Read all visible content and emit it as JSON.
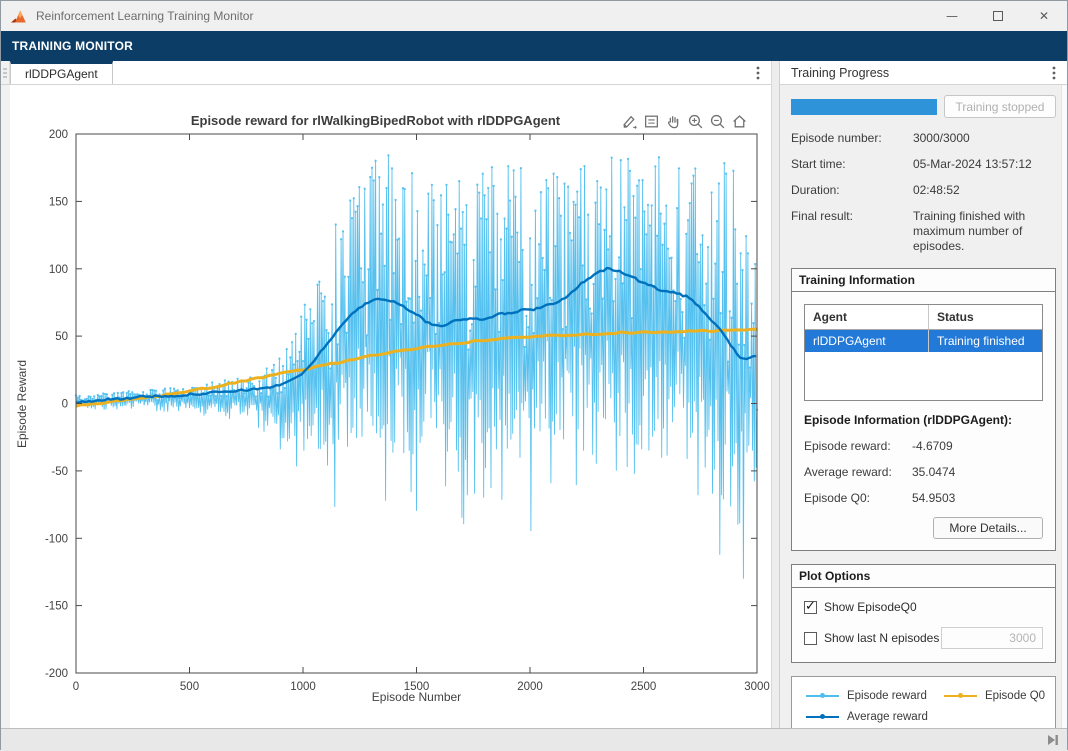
{
  "window": {
    "title": "Reinforcement Learning Training Monitor"
  },
  "ribbon": {
    "tab": "TRAINING MONITOR"
  },
  "document_tab": {
    "label": "rlDDPGAgent"
  },
  "right_panel": {
    "header": "Training Progress",
    "progress": {
      "percent": 100,
      "status_button": "Training stopped"
    },
    "summary": [
      {
        "label": "Episode number:",
        "value": "3000/3000"
      },
      {
        "label": "Start time:",
        "value": "05-Mar-2024 13:57:12"
      },
      {
        "label": "Duration:",
        "value": "02:48:52"
      },
      {
        "label": "Final result:",
        "value": "Training finished with maximum number of episodes."
      }
    ],
    "training_information": {
      "title": "Training Information",
      "table_headers": [
        "Agent",
        "Status"
      ],
      "table_rows": [
        {
          "agent": "rlDDPGAgent",
          "status": "Training finished",
          "selected": true
        }
      ],
      "episode_info_title": "Episode Information (rlDDPGAgent):",
      "episode_info": [
        {
          "label": "Episode reward:",
          "value": "-4.6709"
        },
        {
          "label": "Average reward:",
          "value": "35.0474"
        },
        {
          "label": "Episode Q0:",
          "value": "54.9503"
        }
      ],
      "more_details_button": "More Details..."
    },
    "plot_options": {
      "title": "Plot Options",
      "show_episode_q0": {
        "label": "Show EpisodeQ0",
        "checked": true
      },
      "show_last_n": {
        "label": "Show last N episodes",
        "checked": false,
        "value": "3000"
      }
    }
  },
  "chart_data": {
    "type": "line",
    "title": "Episode reward for rlWalkingBipedRobot with rlDDPGAgent",
    "xlabel": "Episode Number",
    "ylabel": "Episode Reward",
    "xlim": [
      0,
      3000
    ],
    "ylim": [
      -200,
      200
    ],
    "xticks": [
      0,
      500,
      1000,
      1500,
      2000,
      2500,
      3000
    ],
    "yticks": [
      -200,
      -150,
      -100,
      -50,
      0,
      50,
      100,
      150,
      200
    ],
    "grid": false,
    "legend_entries": [
      "Episode reward",
      "Average reward",
      "Episode Q0"
    ],
    "series": [
      {
        "name": "Episode reward",
        "color": "#4DBEEE",
        "type": "noisy",
        "seed": 20240305,
        "step": 4,
        "final_value": -4.6709,
        "envelope": [
          [
            0,
            -4,
            7
          ],
          [
            150,
            -5,
            8
          ],
          [
            300,
            -5,
            10
          ],
          [
            450,
            -7,
            12
          ],
          [
            600,
            -10,
            16
          ],
          [
            750,
            -14,
            20
          ],
          [
            820,
            -20,
            24
          ],
          [
            880,
            -35,
            30
          ],
          [
            940,
            -55,
            45
          ],
          [
            1000,
            -45,
            70
          ],
          [
            1060,
            -60,
            100
          ],
          [
            1120,
            -85,
            130
          ],
          [
            1180,
            -70,
            150
          ],
          [
            1250,
            -60,
            165
          ],
          [
            1320,
            -70,
            185
          ],
          [
            1400,
            -85,
            190
          ],
          [
            1480,
            -90,
            175
          ],
          [
            1560,
            -70,
            178
          ],
          [
            1640,
            -80,
            170
          ],
          [
            1700,
            -105,
            165
          ],
          [
            1760,
            -70,
            172
          ],
          [
            1840,
            -75,
            178
          ],
          [
            1920,
            -85,
            182
          ],
          [
            2000,
            -100,
            172
          ],
          [
            2080,
            -60,
            180
          ],
          [
            2160,
            -70,
            188
          ],
          [
            2240,
            -55,
            193
          ],
          [
            2320,
            -55,
            186
          ],
          [
            2400,
            -65,
            182
          ],
          [
            2480,
            -85,
            190
          ],
          [
            2560,
            -90,
            193
          ],
          [
            2640,
            -80,
            185
          ],
          [
            2720,
            -90,
            178
          ],
          [
            2800,
            -118,
            176
          ],
          [
            2880,
            -125,
            182
          ],
          [
            2940,
            -152,
            176
          ],
          [
            3000,
            -90,
            170
          ]
        ]
      },
      {
        "name": "Average reward",
        "color": "#0072BD",
        "type": "smooth",
        "final_value": 35.0474,
        "points": [
          [
            0,
            1
          ],
          [
            150,
            3
          ],
          [
            300,
            5
          ],
          [
            450,
            6
          ],
          [
            600,
            8
          ],
          [
            700,
            9
          ],
          [
            800,
            11
          ],
          [
            850,
            12
          ],
          [
            900,
            14
          ],
          [
            950,
            17
          ],
          [
            1000,
            23
          ],
          [
            1050,
            32
          ],
          [
            1100,
            43
          ],
          [
            1150,
            54
          ],
          [
            1200,
            64
          ],
          [
            1250,
            71
          ],
          [
            1300,
            76
          ],
          [
            1340,
            78
          ],
          [
            1380,
            77
          ],
          [
            1420,
            74
          ],
          [
            1460,
            70
          ],
          [
            1500,
            66
          ],
          [
            1540,
            61
          ],
          [
            1580,
            58
          ],
          [
            1620,
            58
          ],
          [
            1660,
            61
          ],
          [
            1700,
            62
          ],
          [
            1740,
            64
          ],
          [
            1780,
            62
          ],
          [
            1820,
            64
          ],
          [
            1860,
            66
          ],
          [
            1900,
            67
          ],
          [
            1940,
            68
          ],
          [
            1980,
            70
          ],
          [
            2020,
            70
          ],
          [
            2060,
            72
          ],
          [
            2100,
            74
          ],
          [
            2140,
            77
          ],
          [
            2180,
            82
          ],
          [
            2220,
            88
          ],
          [
            2260,
            93
          ],
          [
            2300,
            97
          ],
          [
            2340,
            100
          ],
          [
            2380,
            99
          ],
          [
            2420,
            96
          ],
          [
            2460,
            93
          ],
          [
            2500,
            89
          ],
          [
            2540,
            87
          ],
          [
            2580,
            84
          ],
          [
            2620,
            83
          ],
          [
            2660,
            81
          ],
          [
            2700,
            79
          ],
          [
            2740,
            73
          ],
          [
            2780,
            65
          ],
          [
            2820,
            58
          ],
          [
            2860,
            50
          ],
          [
            2890,
            42
          ],
          [
            2920,
            35
          ],
          [
            2950,
            33
          ],
          [
            2975,
            34
          ],
          [
            3000,
            35
          ]
        ]
      },
      {
        "name": "Episode Q0",
        "color": "#EDB120",
        "type": "smooth",
        "final_value": 54.9503,
        "points": [
          [
            0,
            -2
          ],
          [
            150,
            1
          ],
          [
            300,
            4
          ],
          [
            450,
            8
          ],
          [
            600,
            12
          ],
          [
            750,
            17
          ],
          [
            900,
            22
          ],
          [
            1050,
            27
          ],
          [
            1200,
            32
          ],
          [
            1350,
            37
          ],
          [
            1500,
            41
          ],
          [
            1650,
            44
          ],
          [
            1800,
            47
          ],
          [
            1950,
            49
          ],
          [
            2100,
            50.5
          ],
          [
            2250,
            51.5
          ],
          [
            2400,
            52.5
          ],
          [
            2550,
            53
          ],
          [
            2700,
            53.5
          ],
          [
            2850,
            54
          ],
          [
            3000,
            54.8
          ]
        ]
      }
    ]
  },
  "icons": {
    "titlebar": [
      "matlab-logo",
      "minimize",
      "maximize",
      "close"
    ],
    "axes_toolbar": [
      "brush",
      "datatip",
      "pan",
      "zoom-in",
      "zoom-out",
      "home"
    ],
    "misc": [
      "kebab-menu",
      "drag-handle",
      "skip-end"
    ]
  }
}
